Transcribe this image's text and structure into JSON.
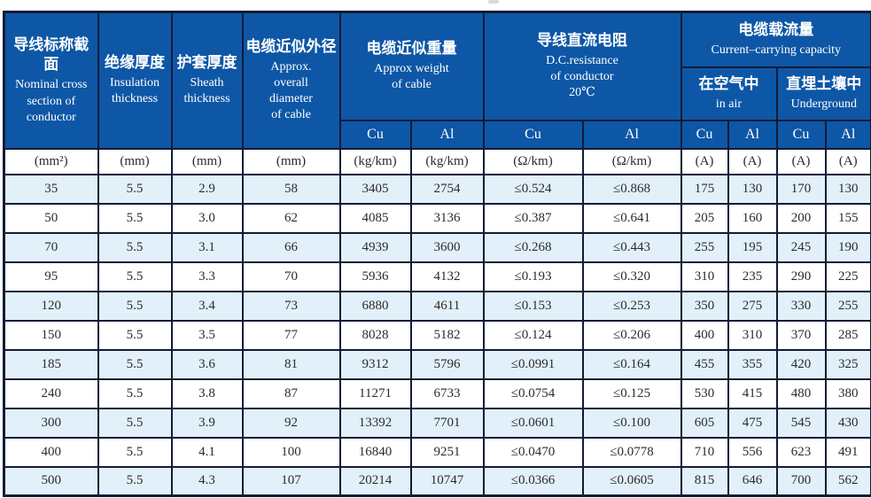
{
  "colors": {
    "header-blue": "#0e57a6",
    "stripe-blue": "#e2f0fa",
    "border-navy": "#121b38",
    "text-dark": "#2b2b2b",
    "header-text": "#ffffff"
  },
  "table": {
    "header": {
      "nominal": {
        "zh": "导线标称截面",
        "en": "Nominal  cross\nsection of\nconductor"
      },
      "insulation": {
        "zh": "绝缘厚度",
        "en": "Insulation\nthickness"
      },
      "sheath": {
        "zh": "护套厚度",
        "en": "Sheath\nthickness"
      },
      "diameter": {
        "zh": "电缆近似外径",
        "en": "Approx.\noverall\ndiameter\nof cable"
      },
      "weight": {
        "zh": "电缆近似重量",
        "en": "Approx weight\nof cable"
      },
      "resistance": {
        "zh": "导线直流电阻",
        "en": "D.C.resistance\nof conductor\n20℃"
      },
      "capacity": {
        "zh": "电缆载流量",
        "en": "Current–carrying capacity"
      },
      "in_air": {
        "zh": "在空气中",
        "en": "in air"
      },
      "underground": {
        "zh": "直埋土壤中",
        "en": "Underground"
      },
      "cu": "Cu",
      "al": "Al"
    },
    "units": [
      "(mm²)",
      "(mm)",
      "(mm)",
      "(mm)",
      "(kg/km)",
      "(kg/km)",
      "(Ω/km)",
      "(Ω/km)",
      "(A)",
      "(A)",
      "(A)",
      "(A)"
    ],
    "rows": [
      [
        "35",
        "5.5",
        "2.9",
        "58",
        "3405",
        "2754",
        "≤0.524",
        "≤0.868",
        "175",
        "130",
        "170",
        "130"
      ],
      [
        "50",
        "5.5",
        "3.0",
        "62",
        "4085",
        "3136",
        "≤0.387",
        "≤0.641",
        "205",
        "160",
        "200",
        "155"
      ],
      [
        "70",
        "5.5",
        "3.1",
        "66",
        "4939",
        "3600",
        "≤0.268",
        "≤0.443",
        "255",
        "195",
        "245",
        "190"
      ],
      [
        "95",
        "5.5",
        "3.3",
        "70",
        "5936",
        "4132",
        "≤0.193",
        "≤0.320",
        "310",
        "235",
        "290",
        "225"
      ],
      [
        "120",
        "5.5",
        "3.4",
        "73",
        "6880",
        "4611",
        "≤0.153",
        "≤0.253",
        "350",
        "275",
        "330",
        "255"
      ],
      [
        "150",
        "5.5",
        "3.5",
        "77",
        "8028",
        "5182",
        "≤0.124",
        "≤0.206",
        "400",
        "310",
        "370",
        "285"
      ],
      [
        "185",
        "5.5",
        "3.6",
        "81",
        "9312",
        "5796",
        "≤0.0991",
        "≤0.164",
        "455",
        "355",
        "420",
        "325"
      ],
      [
        "240",
        "5.5",
        "3.8",
        "87",
        "11271",
        "6733",
        "≤0.0754",
        "≤0.125",
        "530",
        "415",
        "480",
        "380"
      ],
      [
        "300",
        "5.5",
        "3.9",
        "92",
        "13392",
        "7701",
        "≤0.0601",
        "≤0.100",
        "605",
        "475",
        "545",
        "430"
      ],
      [
        "400",
        "5.5",
        "4.1",
        "100",
        "16840",
        "9251",
        "≤0.0470",
        "≤0.0778",
        "710",
        "556",
        "623",
        "491"
      ],
      [
        "500",
        "5.5",
        "4.3",
        "107",
        "20214",
        "10747",
        "≤0.0366",
        "≤0.0605",
        "815",
        "646",
        "700",
        "562"
      ]
    ]
  }
}
